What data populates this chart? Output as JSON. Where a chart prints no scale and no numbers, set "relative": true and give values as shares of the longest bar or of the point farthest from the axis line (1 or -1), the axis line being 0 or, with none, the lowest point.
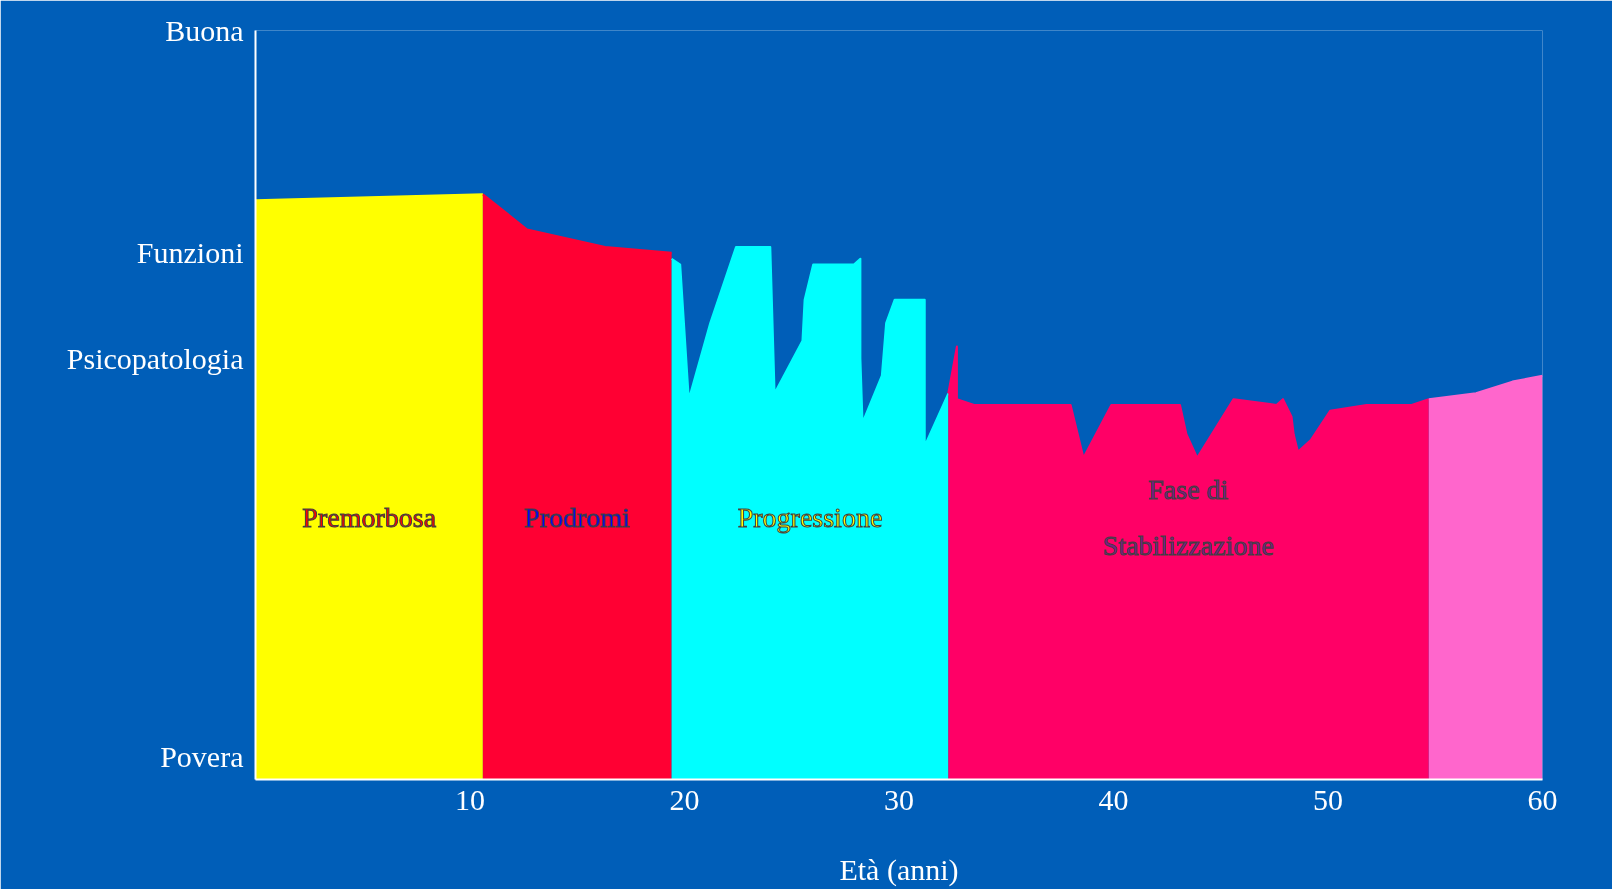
{
  "chart_data": {
    "type": "area",
    "relative": true,
    "xlabel": "Età (anni)",
    "xlim": [
      0,
      60
    ],
    "xticks": [
      10,
      20,
      30,
      40,
      50,
      60
    ],
    "grid": false,
    "legend": false,
    "annotations": [
      "Buona",
      "Funzioni",
      "Psicopatologia",
      "Povera"
    ],
    "series": [
      {
        "name": "Premorbosa",
        "color": "#ffff00",
        "x": [
          0,
          10.6
        ],
        "values": [
          0.99,
          1.0
        ]
      },
      {
        "name": "Prodromi",
        "color": "#ff0033",
        "x": [
          10.6,
          12.66,
          16.3,
          19.4
        ],
        "values": [
          1.0,
          0.94,
          0.91,
          0.9
        ]
      },
      {
        "name": "Progressione",
        "color": "#00ffff",
        "x": [
          19.4,
          19.8,
          20.2,
          21.2,
          22.4,
          24.0,
          24.2,
          25.5,
          25.6,
          26.0,
          27.9,
          28.2,
          28.2,
          28.3,
          29.2,
          29.4,
          29.8,
          31.2,
          31.2,
          32.3
        ],
        "values": [
          0.89,
          0.88,
          0.65,
          0.78,
          0.91,
          0.91,
          0.66,
          0.75,
          0.82,
          0.88,
          0.88,
          0.89,
          0.72,
          0.61,
          0.69,
          0.78,
          0.82,
          0.82,
          0.57,
          0.66
        ]
      },
      {
        "name": "Fase di\nStabilizzazione",
        "color": "#ff0066",
        "x": [
          32.3,
          32.7,
          32.7,
          33.5,
          38.0,
          38.6,
          39.9,
          43.1,
          43.4,
          43.9,
          45.6,
          47.6,
          47.9,
          48.3,
          48.4,
          48.6,
          49.2,
          50.1,
          51.8,
          53.9,
          54.7
        ],
        "values": [
          0.66,
          0.74,
          0.65,
          0.64,
          0.64,
          0.55,
          0.64,
          0.64,
          0.59,
          0.55,
          0.65,
          0.64,
          0.65,
          0.62,
          0.59,
          0.56,
          0.58,
          0.63,
          0.64,
          0.64,
          0.65
        ]
      },
      {
        "color": "#ff66cc",
        "x": [
          54.7,
          56.9,
          58.6,
          60
        ],
        "values": [
          0.65,
          0.66,
          0.68,
          0.69
        ]
      }
    ]
  }
}
